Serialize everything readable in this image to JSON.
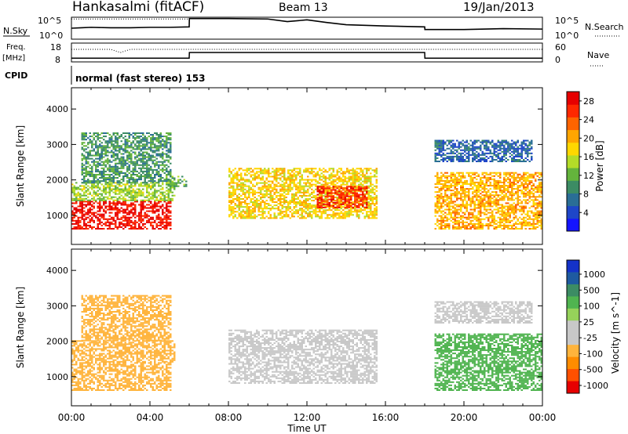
{
  "header": {
    "station": "Hankasalmi (fitACF)",
    "beam": "Beam 13",
    "date": "19/Jan/2013"
  },
  "top_panels": {
    "nsky_label": "N.Sky",
    "nsearch_label": "N.Search",
    "noise_ticks_left": [
      "10^5",
      "10^0"
    ],
    "noise_ticks_right": [
      "10^5",
      "10^0"
    ],
    "freq_label": "Freq.",
    "freq_unit": "[MHz]",
    "freq_ticks": [
      "18",
      "8"
    ],
    "nave_label": "Nave",
    "nave_ticks": [
      "60",
      "0"
    ],
    "cpid_label": "CPID",
    "cpid_value": "normal (fast stereo) 153"
  },
  "colors": {
    "power": [
      "#1414ff",
      "#1e46c8",
      "#2a6e96",
      "#3c8c64",
      "#64b43c",
      "#b4dc28",
      "#ffd700",
      "#ffa500",
      "#ff6400",
      "#ff2800",
      "#e60000"
    ],
    "velocity": [
      "#e60000",
      "#ff5000",
      "#ff8c00",
      "#ffb43c",
      "#c8c8c8",
      "#c8c8c8",
      "#96d25a",
      "#50b450",
      "#3c8c64",
      "#1e5aa0",
      "#1432c8"
    ]
  },
  "chart_data": [
    {
      "type": "line",
      "title": "N.Sky / N.Search",
      "x_hours": [
        0,
        0.5,
        1,
        2,
        3,
        4,
        5,
        6,
        6.01,
        8,
        10,
        11,
        12,
        13,
        14,
        16,
        18,
        18.01,
        20,
        22,
        24
      ],
      "series": [
        {
          "name": "N.Sky",
          "values_log10": [
            2.5,
            2.6,
            2.7,
            2.6,
            2.6,
            2.7,
            2.7,
            2.8,
            4.7,
            4.7,
            4.6,
            4.0,
            4.4,
            3.8,
            3.3,
            3.0,
            2.8,
            2.2,
            2.2,
            2.4,
            2.3
          ]
        },
        {
          "name": "N.Search",
          "values_log10": [
            4.6,
            4.6,
            4.6,
            4.6,
            4.6,
            4.6,
            4.6,
            4.6,
            5.0,
            5.0,
            5.0,
            5.0,
            5.0,
            5.0,
            5.0,
            5.0,
            5.0,
            5.0,
            5.0,
            5.0,
            5.0
          ]
        }
      ],
      "ylim_log10": [
        0,
        5
      ]
    },
    {
      "type": "line",
      "title": "Freq. [MHz] / Nave",
      "x_hours": [
        0,
        2,
        2.5,
        3,
        6,
        6.01,
        12,
        18,
        18.01,
        24
      ],
      "freq_mhz": [
        10,
        10,
        10,
        10,
        10,
        13,
        13,
        13,
        10,
        10
      ],
      "nave": [
        40,
        40,
        30,
        40,
        40,
        40,
        40,
        40,
        40,
        40
      ],
      "ylim_freq": [
        8,
        18
      ],
      "ylim_nave": [
        0,
        60
      ]
    },
    {
      "type": "heatmap",
      "title": "Power",
      "xlabel": "",
      "ylabel": "Slant Range [km]",
      "xlim_hours": [
        0,
        24
      ],
      "ylim_km": [
        180,
        4600
      ],
      "y_ticks": [
        1000,
        2000,
        3000,
        4000
      ],
      "colorbar_label": "Power [dB]",
      "colorbar_ticks": [
        "4",
        "8",
        "12",
        "16",
        "20",
        "24",
        "28"
      ],
      "scale": [
        0,
        30
      ],
      "regions": [
        {
          "t": [
            0,
            5.0
          ],
          "r": [
            600,
            1400
          ],
          "value": 28
        },
        {
          "t": [
            0,
            5.2
          ],
          "r": [
            1400,
            1900
          ],
          "value": 14
        },
        {
          "t": [
            0.5,
            5.0
          ],
          "r": [
            1900,
            3300
          ],
          "value": 10
        },
        {
          "t": [
            4.8,
            5.8
          ],
          "r": [
            1800,
            2100
          ],
          "value": 12
        },
        {
          "t": [
            8.0,
            15.5
          ],
          "r": [
            900,
            2300
          ],
          "value": 18
        },
        {
          "t": [
            12.5,
            15.0
          ],
          "r": [
            1200,
            1800
          ],
          "value": 26
        },
        {
          "t": [
            18.5,
            24
          ],
          "r": [
            600,
            2200
          ],
          "value": 20
        },
        {
          "t": [
            18.5,
            23.5
          ],
          "r": [
            2500,
            3100
          ],
          "value": 6
        }
      ]
    },
    {
      "type": "heatmap",
      "title": "Velocity",
      "xlabel": "Time UT",
      "ylabel": "Slant Range [km]",
      "xlim_hours": [
        0,
        24
      ],
      "ylim_km": [
        180,
        4600
      ],
      "y_ticks": [
        1000,
        2000,
        3000,
        4000
      ],
      "x_ticks": [
        "00:00",
        "04:00",
        "08:00",
        "12:00",
        "16:00",
        "20:00",
        "00:00"
      ],
      "colorbar_label": "Velocity [m s^-1]",
      "colorbar_ticks": [
        "1000",
        "500",
        "100",
        "25",
        "-25",
        "-100",
        "-500",
        "-1000"
      ],
      "regions": [
        {
          "t": [
            0,
            5.0
          ],
          "r": [
            600,
            1400
          ],
          "value": -300
        },
        {
          "t": [
            0,
            5.2
          ],
          "r": [
            1400,
            2000
          ],
          "value": -150
        },
        {
          "t": [
            0.5,
            5.0
          ],
          "r": [
            2000,
            3300
          ],
          "value": -200
        },
        {
          "t": [
            8.0,
            15.5
          ],
          "r": [
            800,
            2300
          ],
          "value": 0
        },
        {
          "t": [
            18.5,
            24
          ],
          "r": [
            600,
            2200
          ],
          "value": 200
        },
        {
          "t": [
            18.5,
            23.5
          ],
          "r": [
            2500,
            3100
          ],
          "value": 0
        }
      ]
    }
  ]
}
